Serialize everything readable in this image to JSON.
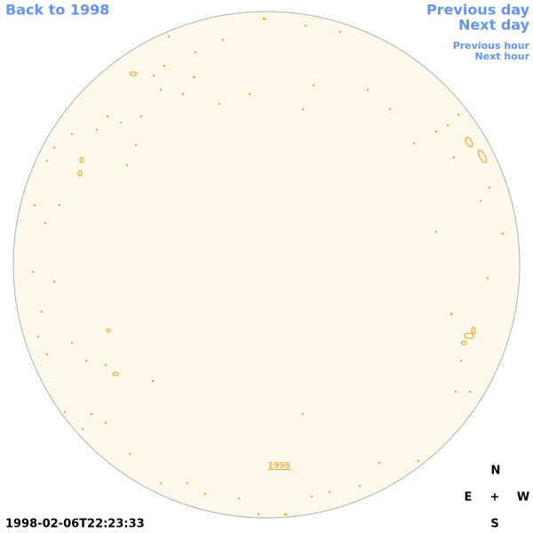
{
  "nav": {
    "back": "Back to 1998",
    "previous_day": "Previous day",
    "next_day": "Next day",
    "previous_hour": "Previous hour",
    "next_hour": "Next hour"
  },
  "disk": {
    "year_link": "1998"
  },
  "timestamp": "1998-02-06T22:23:33",
  "compass": {
    "north": "N",
    "east": "E",
    "center": "+",
    "west": "W",
    "south": "S"
  }
}
